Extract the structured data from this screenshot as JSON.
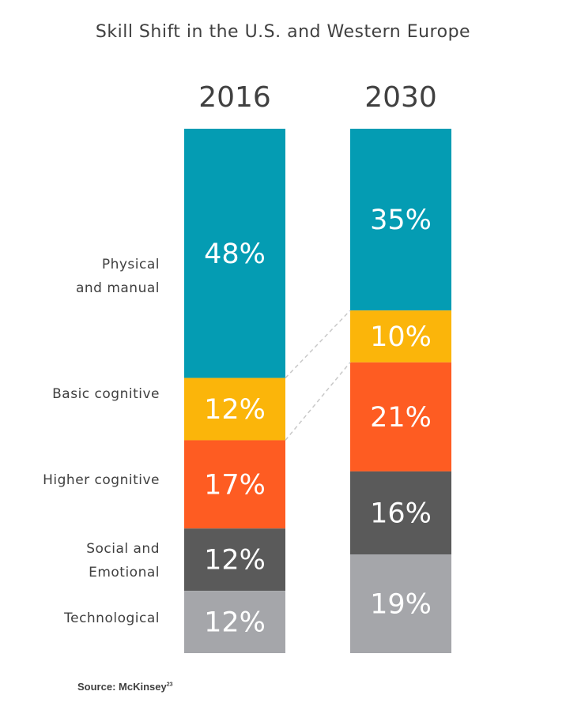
{
  "chart_data": {
    "type": "bar",
    "stacked": true,
    "title": "Skill Shift in the U.S. and Western Europe",
    "categories": [
      "2016",
      "2030"
    ],
    "series": [
      {
        "name": "Physical and manual",
        "values": [
          48,
          35
        ],
        "labels": [
          "48%",
          "35%"
        ],
        "color": "#049cb3"
      },
      {
        "name": "Basic cognitive",
        "values": [
          12,
          10
        ],
        "labels": [
          "12%",
          "10%"
        ],
        "color": "#fbb50a"
      },
      {
        "name": "Higher cognitive",
        "values": [
          17,
          21
        ],
        "labels": [
          "17%",
          "21%"
        ],
        "color": "#fe5c22"
      },
      {
        "name": "Social and Emotional",
        "values": [
          12,
          16
        ],
        "labels": [
          "12%",
          "16%"
        ],
        "color": "#5a5a5a"
      },
      {
        "name": "Technological",
        "values": [
          12,
          19
        ],
        "labels": [
          "12%",
          "19%"
        ],
        "color": "#a5a6aa"
      }
    ],
    "category_labels": {
      "physical": [
        "Physical",
        "and manual"
      ],
      "basic": "Basic cognitive",
      "higher": "Higher cognitive",
      "social": [
        "Social and",
        "Emotional"
      ],
      "tech": "Technological"
    }
  },
  "source": {
    "text": "Source: McKinsey",
    "sup": "23"
  }
}
